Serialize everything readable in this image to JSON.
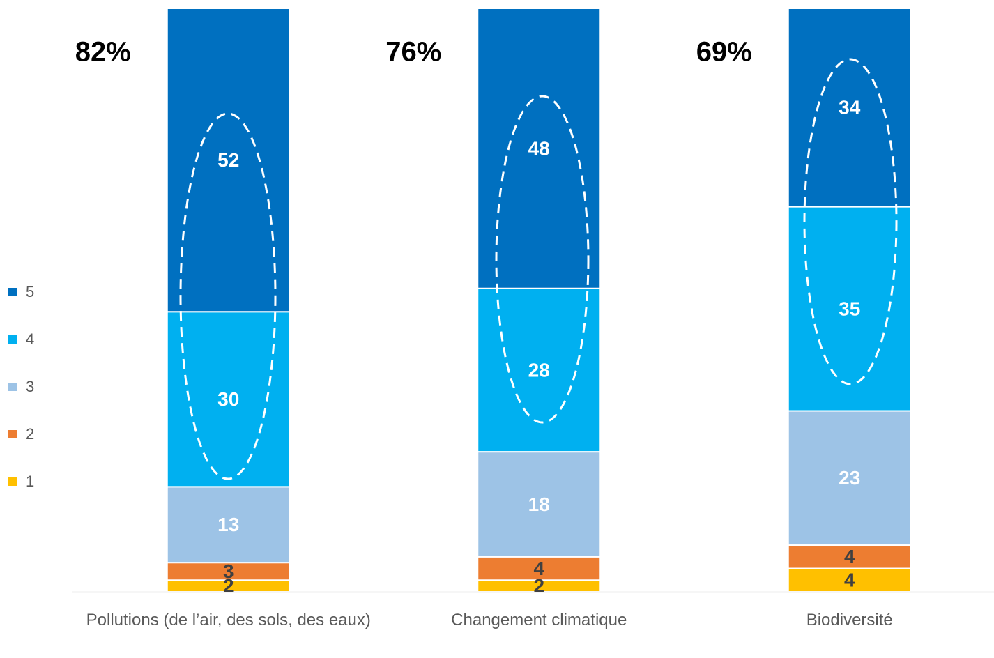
{
  "chart_data": {
    "type": "stacked_bar",
    "categories": [
      "Pollutions (de l’air, des sols, des eaux)",
      "Changement climatique",
      "Biodiversité"
    ],
    "series": [
      {
        "name": "1",
        "color": "#ffc000",
        "values": [
          2,
          2,
          4
        ]
      },
      {
        "name": "2",
        "color": "#ed7d31",
        "values": [
          3,
          4,
          4
        ]
      },
      {
        "name": "3",
        "color": "#9dc3e6",
        "values": [
          13,
          18,
          23
        ]
      },
      {
        "name": "4",
        "color": "#00b0f0",
        "values": [
          30,
          28,
          35
        ]
      },
      {
        "name": "5",
        "color": "#0070c0",
        "values": [
          52,
          48,
          34
        ]
      }
    ],
    "annotations": [
      {
        "value": 82,
        "label": "82%"
      },
      {
        "value": 76,
        "label": "76%"
      },
      {
        "value": 69,
        "label": "69%"
      }
    ],
    "ylim": [
      0,
      100
    ],
    "legend": "left"
  }
}
